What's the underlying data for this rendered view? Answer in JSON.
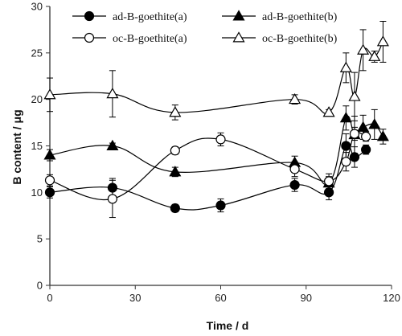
{
  "chart_data": {
    "type": "line",
    "xlabel": "Time / d",
    "ylabel": "B content / μg",
    "xlim": [
      0,
      120
    ],
    "ylim": [
      0,
      30
    ],
    "xticks": [
      0,
      30,
      60,
      90,
      120
    ],
    "yticks": [
      0,
      5,
      10,
      15,
      20,
      25,
      30
    ],
    "grid": false,
    "legend_position": "top",
    "series": [
      {
        "name": "ad-B-goethite(a)",
        "marker": "filled-circle",
        "x": [
          0,
          22,
          44,
          60,
          86,
          98,
          104,
          107,
          111
        ],
        "y": [
          10.0,
          10.5,
          8.3,
          8.6,
          10.8,
          10.0,
          15.0,
          13.8,
          14.6
        ],
        "err": [
          0.6,
          1.0,
          0.4,
          0.7,
          0.7,
          0.8,
          1.3,
          1.1,
          0.5
        ]
      },
      {
        "name": "ad-B-goethite(b)",
        "marker": "filled-triangle",
        "x": [
          0,
          22,
          44,
          86,
          98,
          104,
          107,
          110,
          114,
          117
        ],
        "y": [
          14.0,
          15.0,
          12.2,
          13.2,
          11.0,
          18.0,
          16.2,
          17.0,
          17.3,
          16.0
        ],
        "err": [
          0.6,
          0.3,
          0.5,
          0.7,
          0.7,
          1.3,
          2.0,
          1.3,
          1.6,
          0.8
        ]
      },
      {
        "name": "oc-B-goethite(a)",
        "marker": "open-circle",
        "x": [
          0,
          22,
          44,
          60,
          86,
          98,
          104,
          107,
          111
        ],
        "y": [
          11.3,
          9.3,
          14.5,
          15.7,
          12.5,
          11.2,
          13.3,
          16.3,
          16.0
        ],
        "err": [
          0.6,
          2.0,
          0.4,
          0.7,
          0.8,
          0.8,
          1.0,
          0.7,
          0.5
        ]
      },
      {
        "name": "oc-B-goethite(b)",
        "marker": "open-triangle",
        "x": [
          0,
          22,
          44,
          86,
          98,
          104,
          107,
          110,
          114,
          117
        ],
        "y": [
          20.5,
          20.6,
          18.6,
          20.0,
          18.6,
          23.4,
          20.3,
          25.3,
          24.6,
          26.2
        ],
        "err": [
          1.8,
          2.5,
          0.8,
          0.5,
          0.3,
          1.6,
          2.6,
          2.2,
          0.6,
          2.2
        ]
      }
    ]
  }
}
